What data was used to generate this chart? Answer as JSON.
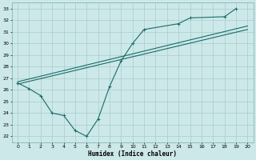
{
  "xlabel": "Humidex (Indice chaleur)",
  "bg_color": "#cce8e8",
  "grid_color": "#aacccc",
  "line_color": "#1a6b6b",
  "xlim": [
    -0.5,
    20.5
  ],
  "ylim": [
    21.5,
    33.5
  ],
  "xticks": [
    0,
    1,
    2,
    3,
    4,
    5,
    6,
    7,
    8,
    9,
    10,
    11,
    12,
    13,
    14,
    15,
    16,
    17,
    18,
    19,
    20
  ],
  "yticks": [
    22,
    23,
    24,
    25,
    26,
    27,
    28,
    29,
    30,
    31,
    32,
    33
  ],
  "line1_x": [
    0,
    1,
    2,
    3,
    4,
    5,
    6,
    7,
    8,
    9,
    10,
    11,
    14,
    15,
    18,
    19
  ],
  "line1_y": [
    26.6,
    26.1,
    25.5,
    24.0,
    23.8,
    22.5,
    22.0,
    23.5,
    26.3,
    28.5,
    30.0,
    31.2,
    31.7,
    32.2,
    32.3,
    33.0
  ],
  "line2": [
    [
      0,
      20
    ],
    [
      26.7,
      31.5
    ]
  ],
  "line3": [
    [
      0,
      20
    ],
    [
      26.5,
      31.2
    ]
  ]
}
